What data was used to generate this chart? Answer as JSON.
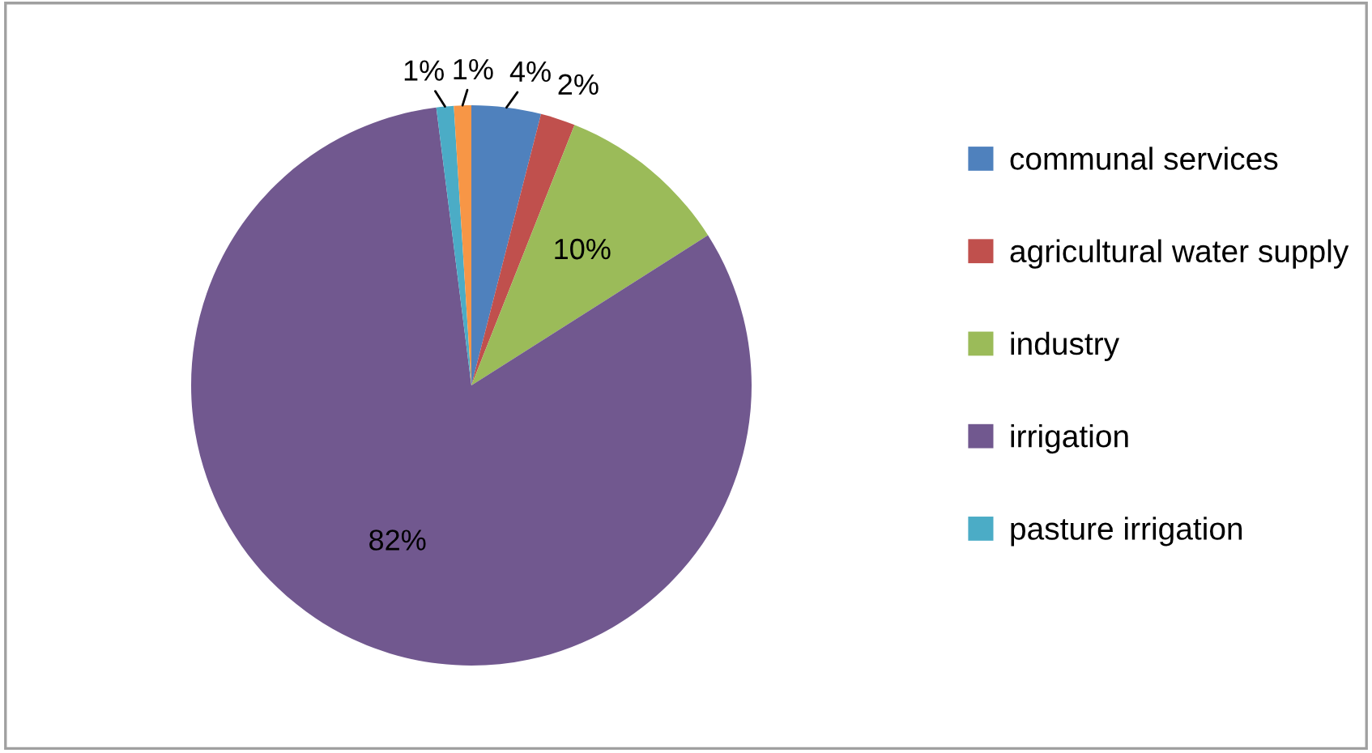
{
  "chart_data": {
    "type": "pie",
    "categories": [
      "communal services",
      "agricultural water supply",
      "industry",
      "irrigation",
      "pasture irrigation",
      null
    ],
    "values": [
      4,
      2,
      10,
      82,
      1,
      1
    ],
    "colors": [
      "#4f81bd",
      "#c0504d",
      "#9bbb59",
      "#71588f",
      "#4bacc6",
      "#f79646"
    ],
    "value_labels": [
      "4%",
      "2%",
      "10%",
      "82%",
      "1%",
      "1%"
    ],
    "legend": "right"
  }
}
